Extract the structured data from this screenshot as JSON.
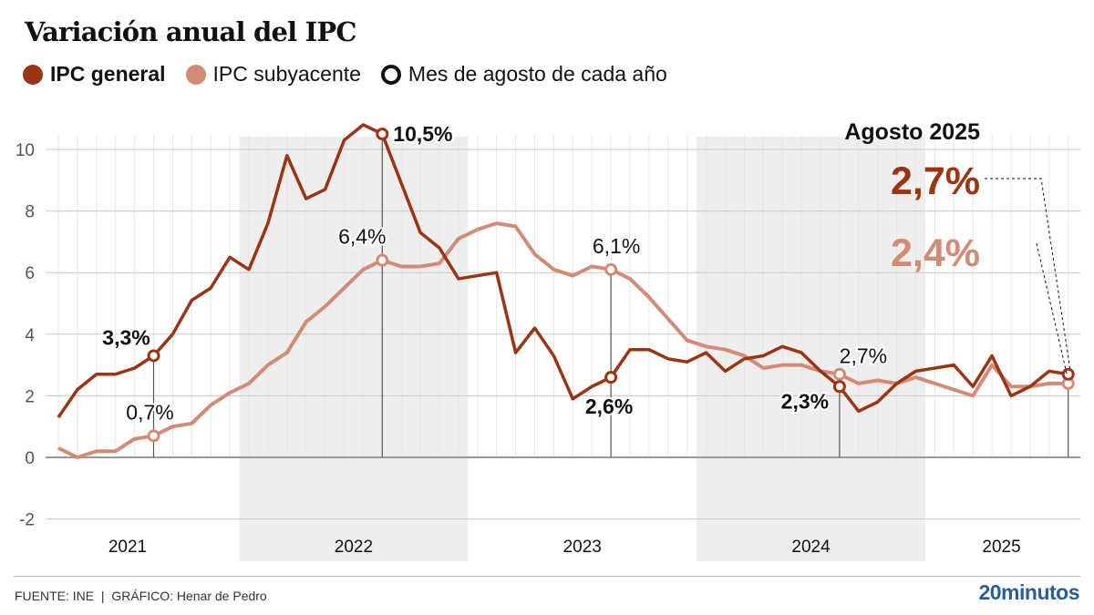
{
  "title": "Variación anual del IPC",
  "legend": [
    {
      "label": "IPC general",
      "color": "#9b3412",
      "marker": "dot"
    },
    {
      "label": "IPC subyacente",
      "color": "#d38b76",
      "marker": "dot"
    },
    {
      "label": "Mes de agosto de cada año",
      "color": "#111111",
      "marker": "ring"
    }
  ],
  "footer": {
    "source": "FUENTE: INE  |  GRÁFICO: Henar de Pedro",
    "brand": "20minutos"
  },
  "colors": {
    "general": "#9b3412",
    "core": "#d38b76",
    "band": "#ebebeb",
    "grid": "#c8c8c8",
    "minorGrid": "#e6e6e6",
    "highlight": "#2a5d97"
  },
  "chart_data": {
    "type": "line",
    "title": "Variación anual del IPC",
    "xlabel": "",
    "ylabel": "",
    "ylim": [
      -2,
      11
    ],
    "yticks": [
      -2,
      0,
      2,
      4,
      6,
      8,
      10
    ],
    "x_start": "2021-03",
    "x_end": "2025-08",
    "year_labels": [
      "2021",
      "2022",
      "2023",
      "2024",
      "2025"
    ],
    "shaded_years": [
      "2022",
      "2024"
    ],
    "grid": true,
    "legend_position": "top-left",
    "series": [
      {
        "name": "IPC general",
        "values": [
          1.3,
          2.2,
          2.7,
          2.7,
          2.9,
          3.3,
          4.0,
          5.1,
          5.5,
          6.5,
          6.1,
          7.6,
          9.8,
          8.4,
          8.7,
          10.3,
          10.8,
          10.5,
          8.9,
          7.3,
          6.8,
          5.8,
          5.9,
          6.0,
          3.4,
          4.2,
          3.3,
          1.9,
          2.3,
          2.6,
          3.5,
          3.5,
          3.2,
          3.1,
          3.4,
          2.8,
          3.2,
          3.3,
          3.6,
          3.4,
          2.8,
          2.3,
          1.5,
          1.8,
          2.4,
          2.8,
          2.9,
          3.0,
          2.3,
          3.3,
          2.0,
          2.3,
          2.8,
          2.7
        ]
      },
      {
        "name": "IPC subyacente",
        "values": [
          0.3,
          0.0,
          0.2,
          0.2,
          0.6,
          0.7,
          1.0,
          1.1,
          1.7,
          2.1,
          2.4,
          3.0,
          3.4,
          4.4,
          4.9,
          5.5,
          6.1,
          6.4,
          6.2,
          6.2,
          6.3,
          7.1,
          7.4,
          7.6,
          7.5,
          6.6,
          6.1,
          5.9,
          6.2,
          6.1,
          5.8,
          5.2,
          4.5,
          3.8,
          3.6,
          3.5,
          3.3,
          2.9,
          3.0,
          3.0,
          2.8,
          2.7,
          2.4,
          2.5,
          2.4,
          2.6,
          2.4,
          2.2,
          2.0,
          3.0,
          2.3,
          2.3,
          2.4,
          2.4
        ]
      }
    ],
    "annotations": [
      {
        "month": "2021-08",
        "series": "IPC general",
        "label": "3,3%",
        "bold": true
      },
      {
        "month": "2021-08",
        "series": "IPC subyacente",
        "label": "0,7%",
        "bold": false
      },
      {
        "month": "2022-08",
        "series": "IPC general",
        "label": "10,5%",
        "bold": true
      },
      {
        "month": "2022-08",
        "series": "IPC subyacente",
        "label": "6,4%",
        "bold": false
      },
      {
        "month": "2023-08",
        "series": "IPC general",
        "label": "2,6%",
        "bold": true
      },
      {
        "month": "2023-08",
        "series": "IPC subyacente",
        "label": "6,1%",
        "bold": false
      },
      {
        "month": "2024-08",
        "series": "IPC general",
        "label": "2,3%",
        "bold": true
      },
      {
        "month": "2024-08",
        "series": "IPC subyacente",
        "label": "2,7%",
        "bold": false
      }
    ],
    "callout": {
      "title": "Agosto 2025",
      "general": "2,7%",
      "core": "2,4%"
    }
  }
}
